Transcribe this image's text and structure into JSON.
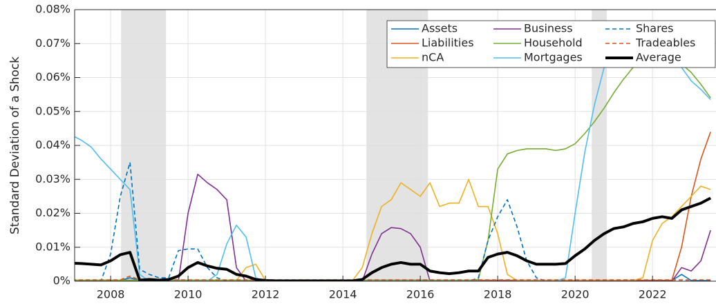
{
  "chart_data": {
    "type": "line",
    "y_label": "Standard Deviation of a Shock",
    "x": [
      2007,
      2007.25,
      2007.5,
      2007.75,
      2008,
      2008.25,
      2008.5,
      2008.75,
      2009,
      2009.25,
      2009.5,
      2009.75,
      2010,
      2010.25,
      2010.5,
      2010.75,
      2011,
      2011.25,
      2011.5,
      2011.75,
      2012,
      2012.25,
      2012.5,
      2012.75,
      2013,
      2013.25,
      2013.5,
      2013.75,
      2014,
      2014.25,
      2014.5,
      2014.75,
      2015,
      2015.25,
      2015.5,
      2015.75,
      2016,
      2016.25,
      2016.5,
      2016.75,
      2017,
      2017.25,
      2017.5,
      2017.75,
      2018,
      2018.25,
      2018.5,
      2018.75,
      2019,
      2019.25,
      2019.5,
      2019.75,
      2020,
      2020.25,
      2020.5,
      2020.75,
      2021,
      2021.25,
      2021.5,
      2021.75,
      2022,
      2022.25,
      2022.5,
      2022.75,
      2023,
      2023.25,
      2023.5
    ],
    "xlim": [
      2007.07,
      2023.64
    ],
    "xticks": [
      2008,
      2010,
      2012,
      2014,
      2016,
      2018,
      2020,
      2022
    ],
    "ylim": [
      0,
      0.08
    ],
    "yticks": [
      {
        "value": 0,
        "label": "0%"
      },
      {
        "value": 0.01,
        "label": "0.01%"
      },
      {
        "value": 0.02,
        "label": "0.02%"
      },
      {
        "value": 0.03,
        "label": "0.03%"
      },
      {
        "value": 0.04,
        "label": "0.04%"
      },
      {
        "value": 0.05,
        "label": "0.05%"
      },
      {
        "value": 0.06,
        "label": "0.06%"
      },
      {
        "value": 0.07,
        "label": "0.07%"
      },
      {
        "value": 0.08,
        "label": "0.08%"
      }
    ],
    "grid": true,
    "legend_location": "northeast",
    "shaded_regions": [
      [
        2008.27,
        2009.43
      ],
      [
        2014.61,
        2016.2
      ],
      [
        2020.43,
        2020.82
      ]
    ],
    "shade_color": "#e3e3e3",
    "series": [
      {
        "name": "Assets",
        "color": "#0072bd",
        "line_style": "solid",
        "line_width": 1.6,
        "values": [
          0.0002,
          0.0002,
          0.0002,
          0.0002,
          0.0002,
          0.0002,
          0.001,
          0.0002,
          0.0002,
          0.0002,
          0.0002,
          0.0002,
          0.0002,
          0.0002,
          0.0002,
          0.0002,
          0.0002,
          0.0002,
          0.0002,
          0.0002,
          0.0002,
          0.0002,
          0.0002,
          0.0002,
          0.0002,
          0.0002,
          0.0002,
          0.0002,
          0.0002,
          0.0002,
          0.0002,
          0.0002,
          0.0002,
          0.0002,
          0.0002,
          0.0002,
          0.0002,
          0.0002,
          0.0002,
          0.0002,
          0.0002,
          0.0002,
          0.0002,
          0.0002,
          0.0002,
          0.0002,
          0.0002,
          0.0002,
          0.0002,
          0.0002,
          0.0002,
          0.0002,
          0.0002,
          0.0002,
          0.0002,
          0.0002,
          0.0002,
          0.0002,
          0.0002,
          0.0002,
          0.0002,
          0.0002,
          0.0002,
          0.002,
          0.0002,
          0.0002,
          0.0002
        ]
      },
      {
        "name": "Liabilities",
        "color": "#d95319",
        "line_style": "solid",
        "line_width": 1.6,
        "values": [
          0.0003,
          0.0003,
          0.0003,
          0.0003,
          0.0003,
          0.0003,
          0.0003,
          0.0003,
          0.0003,
          0.0003,
          0.0003,
          0.0003,
          0.0003,
          0.0003,
          0.0003,
          0.0003,
          0.0003,
          0.0003,
          0.0003,
          0.0003,
          0.0003,
          0.0003,
          0.0003,
          0.0003,
          0.0003,
          0.0003,
          0.0003,
          0.0003,
          0.0003,
          0.0003,
          0.0003,
          0.0003,
          0.0003,
          0.0003,
          0.0003,
          0.0003,
          0.0003,
          0.0003,
          0.0003,
          0.0003,
          0.0003,
          0.0003,
          0.0003,
          0.0003,
          0.0003,
          0.0003,
          0.0003,
          0.0003,
          0.0003,
          0.0003,
          0.0003,
          0.0003,
          0.0003,
          0.0003,
          0.0003,
          0.0003,
          0.0003,
          0.0003,
          0.0003,
          0.0003,
          0.0003,
          0.0003,
          0.0003,
          0.01,
          0.025,
          0.036,
          0.044
        ]
      },
      {
        "name": "nCA",
        "color": "#edb120",
        "line_style": "solid",
        "line_width": 1.6,
        "values": [
          0.0002,
          0.0002,
          0.0002,
          0.0002,
          0.0002,
          0.0002,
          0.0002,
          0.0002,
          0.0002,
          0.0002,
          0.0002,
          0.0002,
          0.0002,
          0.0002,
          0.0002,
          0.0002,
          0.0002,
          0.0002,
          0.004,
          0.005,
          0.0002,
          0.0002,
          0.0002,
          0.0002,
          0.0002,
          0.0002,
          0.0002,
          0.0002,
          0.0002,
          0.0002,
          0.004,
          0.014,
          0.022,
          0.024,
          0.029,
          0.027,
          0.025,
          0.029,
          0.022,
          0.023,
          0.023,
          0.03,
          0.022,
          0.022,
          0.014,
          0.002,
          0.0002,
          0.0002,
          0.0002,
          0.0002,
          0.0002,
          0.0002,
          0.0002,
          0.0002,
          0.0002,
          0.0002,
          0.0002,
          0.0002,
          0.0002,
          0.001,
          0.012,
          0.017,
          0.019,
          0.022,
          0.025,
          0.028,
          0.027
        ]
      },
      {
        "name": "Business",
        "color": "#7e2f8e",
        "line_style": "solid",
        "line_width": 1.6,
        "values": [
          0,
          0,
          0,
          0,
          0,
          0,
          0,
          0,
          0,
          0,
          0,
          0,
          0.02,
          0.0315,
          0.029,
          0.027,
          0.024,
          0.004,
          0,
          0,
          0,
          0,
          0,
          0,
          0,
          0,
          0,
          0,
          0,
          0,
          0,
          0.008,
          0.014,
          0.0158,
          0.0155,
          0.014,
          0.01,
          0,
          0,
          0,
          0,
          0,
          0,
          0,
          0,
          0,
          0,
          0,
          0,
          0,
          0,
          0,
          0,
          0,
          0,
          0,
          0,
          0,
          0,
          0,
          0,
          0,
          0,
          0.004,
          0.003,
          0.006,
          0.015
        ]
      },
      {
        "name": "Household",
        "color": "#77ac30",
        "line_style": "solid",
        "line_width": 1.6,
        "values": [
          0.0003,
          0.0003,
          0.0003,
          0.0003,
          0.0003,
          0.0003,
          0.0003,
          0.0003,
          0.0003,
          0.0003,
          0.0003,
          0.0003,
          0.0003,
          0.0003,
          0.0003,
          0.0003,
          0.0003,
          0.0003,
          0.0003,
          0.0003,
          0.0003,
          0.0003,
          0.0003,
          0.0003,
          0.0003,
          0.0003,
          0.0003,
          0.0003,
          0.0003,
          0.0003,
          0.0003,
          0.0003,
          0.0003,
          0.0003,
          0.0003,
          0.0003,
          0.0003,
          0.0003,
          0.0003,
          0.0003,
          0.0003,
          0.0003,
          0.0005,
          0.012,
          0.033,
          0.0375,
          0.0385,
          0.039,
          0.039,
          0.039,
          0.0385,
          0.039,
          0.0405,
          0.0435,
          0.047,
          0.051,
          0.0555,
          0.0595,
          0.063,
          0.0655,
          0.067,
          0.067,
          0.066,
          0.064,
          0.0615,
          0.058,
          0.054
        ]
      },
      {
        "name": "Mortgages",
        "color": "#4dbeee",
        "line_style": "solid",
        "line_width": 1.6,
        "values": [
          0.043,
          0.0415,
          0.0395,
          0.036,
          0.033,
          0.03,
          0.027,
          0.002,
          0,
          0,
          0,
          0,
          0,
          0,
          0,
          0.002,
          0.011,
          0.0165,
          0.013,
          0.001,
          0,
          0,
          0,
          0,
          0,
          0,
          0,
          0,
          0,
          0,
          0,
          0,
          0,
          0,
          0,
          0,
          0,
          0,
          0,
          0,
          0,
          0,
          0,
          0,
          0,
          0,
          0,
          0,
          0,
          0,
          0,
          0.001,
          0.02,
          0.038,
          0.052,
          0.063,
          0.068,
          0.07,
          0.071,
          0.071,
          0.07,
          0.069,
          0.067,
          0.063,
          0.059,
          0.0565,
          0.0535
        ]
      },
      {
        "name": "Shares",
        "color": "#0072bd",
        "line_style": "dashed",
        "line_width": 1.6,
        "values": [
          0,
          0,
          0,
          0,
          0.008,
          0.025,
          0.035,
          0.0035,
          0.002,
          0.001,
          0.001,
          0.009,
          0.0095,
          0.0095,
          0.004,
          0.001,
          0,
          0,
          0,
          0,
          0,
          0,
          0,
          0,
          0,
          0,
          0,
          0,
          0,
          0,
          0,
          0,
          0,
          0,
          0,
          0,
          0,
          0,
          0,
          0,
          0,
          0,
          0.001,
          0.012,
          0.019,
          0.024,
          0.016,
          0.006,
          0.001,
          0,
          0,
          0,
          0,
          0,
          0,
          0,
          0,
          0,
          0,
          0,
          0,
          0,
          0,
          0,
          0,
          0,
          0
        ]
      },
      {
        "name": "Tradeables",
        "color": "#d95319",
        "line_style": "dashed",
        "line_width": 1.6,
        "values": [
          0.0004,
          0.0004,
          0.0004,
          0.0004,
          0.0004,
          0.0004,
          0.0015,
          0.0004,
          0.0004,
          0.0004,
          0.0004,
          0.0004,
          0.0004,
          0.0004,
          0.0004,
          0.0004,
          0.0004,
          0.0004,
          0.0004,
          0.0004,
          0.0004,
          0.0004,
          0.0004,
          0.0004,
          0.0004,
          0.0004,
          0.0004,
          0.0004,
          0.0004,
          0.0004,
          0.0004,
          0.0004,
          0.0004,
          0.0004,
          0.0004,
          0.0004,
          0.0004,
          0.0004,
          0.0004,
          0.0004,
          0.0004,
          0.0004,
          0.0004,
          0.0004,
          0.0004,
          0.0004,
          0.0004,
          0.0004,
          0.0004,
          0.0004,
          0.0004,
          0.0004,
          0.0004,
          0.0004,
          0.0004,
          0.0004,
          0.0004,
          0.0004,
          0.0004,
          0.0004,
          0.0004,
          0.0004,
          0.0004,
          0.0004,
          0.0004,
          0.0004,
          0.0004
        ]
      },
      {
        "name": "Average",
        "color": "#000000",
        "line_style": "solid",
        "line_width": 4,
        "values": [
          0.0053,
          0.0052,
          0.005,
          0.0048,
          0.006,
          0.0078,
          0.0085,
          0.0003,
          0.0005,
          0.0003,
          0.0005,
          0.0015,
          0.004,
          0.0055,
          0.0045,
          0.0038,
          0.0035,
          0.002,
          0.0015,
          0.0005,
          0.0002,
          0.0001,
          0.0001,
          0.0001,
          0.0001,
          0.0001,
          0.0001,
          0.0001,
          0.0001,
          0.0001,
          0.0005,
          0.0025,
          0.004,
          0.005,
          0.0055,
          0.005,
          0.005,
          0.003,
          0.0025,
          0.0022,
          0.0025,
          0.003,
          0.003,
          0.007,
          0.008,
          0.0085,
          0.0075,
          0.006,
          0.005,
          0.005,
          0.005,
          0.0052,
          0.0075,
          0.0095,
          0.012,
          0.014,
          0.0155,
          0.016,
          0.017,
          0.0175,
          0.0185,
          0.019,
          0.0185,
          0.021,
          0.022,
          0.023,
          0.0245
        ]
      }
    ]
  }
}
